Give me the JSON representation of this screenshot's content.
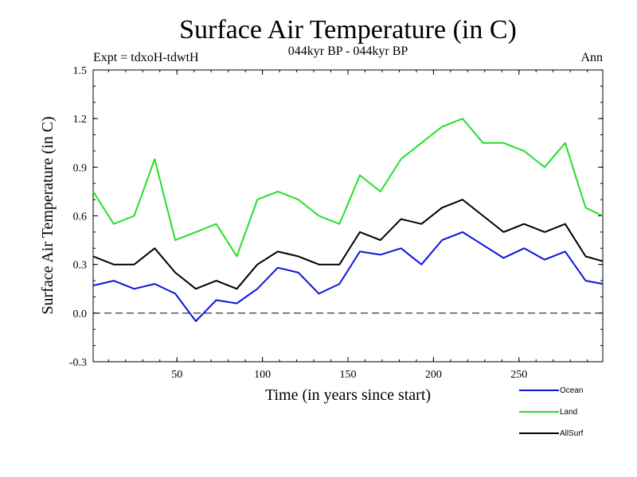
{
  "chart_data": {
    "type": "line",
    "title": "Surface Air Temperature (in C)",
    "subtitle": "044kyr BP - 044kyr BP",
    "left_note": "Expt = tdxoH-tdwtH",
    "right_note": "Ann",
    "xlabel": "Time (in years since start)",
    "ylabel": "Surface Air Temperature (in C)",
    "xlim": [
      1,
      299
    ],
    "ylim": [
      -0.3,
      1.5
    ],
    "xticks": [
      50,
      100,
      150,
      200,
      250
    ],
    "xtick_labels": [
      "50",
      "100",
      "150",
      "200",
      "250"
    ],
    "yticks": [
      -0.3,
      0.0,
      0.3,
      0.6,
      0.9,
      1.2,
      1.5
    ],
    "ytick_labels": [
      "-0.3",
      "0.0",
      "0.3",
      "0.6",
      "0.9",
      "1.2",
      "1.5"
    ],
    "reference_line": 0.0,
    "grid": false,
    "legend_position": "bottom-right",
    "x": [
      1,
      13,
      25,
      37,
      49,
      61,
      73,
      85,
      97,
      109,
      121,
      133,
      145,
      157,
      169,
      181,
      193,
      205,
      217,
      229,
      241,
      253,
      265,
      277,
      289,
      299
    ],
    "series": [
      {
        "name": "Ocean",
        "color": "#0a14d8",
        "values": [
          0.17,
          0.2,
          0.15,
          0.18,
          0.12,
          -0.05,
          0.08,
          0.06,
          0.15,
          0.28,
          0.25,
          0.12,
          0.18,
          0.38,
          0.36,
          0.4,
          0.3,
          0.45,
          0.5,
          0.42,
          0.34,
          0.4,
          0.33,
          0.38,
          0.2,
          0.18
        ]
      },
      {
        "name": "Land",
        "color": "#22e028",
        "values": [
          0.75,
          0.55,
          0.6,
          0.95,
          0.45,
          0.5,
          0.55,
          0.35,
          0.7,
          0.75,
          0.7,
          0.6,
          0.55,
          0.85,
          0.75,
          0.95,
          1.05,
          1.15,
          1.2,
          1.05,
          1.05,
          1.0,
          0.9,
          1.05,
          0.65,
          0.6
        ]
      },
      {
        "name": "AllSurf",
        "color": "#000000",
        "values": [
          0.35,
          0.3,
          0.3,
          0.4,
          0.25,
          0.15,
          0.2,
          0.15,
          0.3,
          0.38,
          0.35,
          0.3,
          0.3,
          0.5,
          0.45,
          0.58,
          0.55,
          0.65,
          0.7,
          0.6,
          0.5,
          0.55,
          0.5,
          0.55,
          0.35,
          0.32
        ]
      }
    ]
  }
}
